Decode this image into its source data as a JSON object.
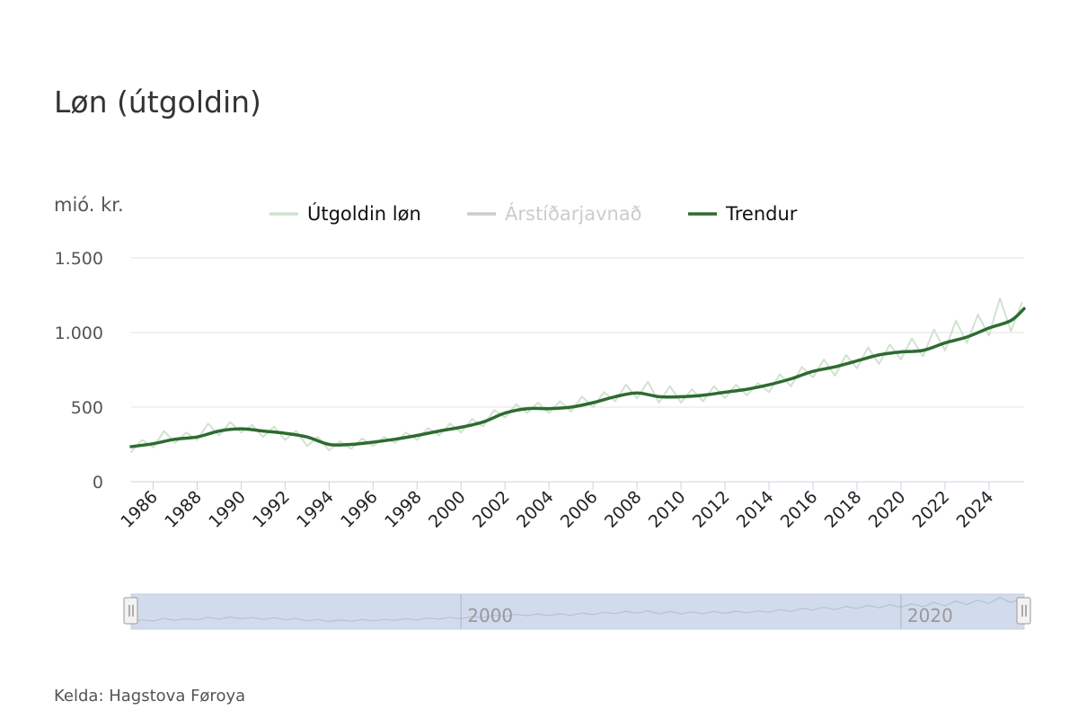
{
  "chart_data": {
    "type": "line",
    "title": "Løn (útgoldin)",
    "ylabel": "mió. kr.",
    "source": "Kelda: Hagstova Føroya",
    "ylim": [
      0,
      1500
    ],
    "xlim": [
      1985.0,
      2025.6
    ],
    "yticks": [
      {
        "value": 0,
        "label": "0"
      },
      {
        "value": 500,
        "label": "500"
      },
      {
        "value": 1000,
        "label": "1.000"
      },
      {
        "value": 1500,
        "label": "1.500"
      }
    ],
    "xticks": [
      "1986",
      "1988",
      "1990",
      "1992",
      "1994",
      "1996",
      "1998",
      "2000",
      "2002",
      "2004",
      "2006",
      "2008",
      "2010",
      "2012",
      "2014",
      "2016",
      "2018",
      "2020",
      "2022",
      "2024"
    ],
    "grid": true,
    "legend": {
      "placement": "top-center",
      "entries": [
        {
          "name": "Útgoldin løn",
          "color": "#cfe3cf",
          "visible": true
        },
        {
          "name": "Árstíðarjavnað",
          "color": "#cccccc",
          "visible": false
        },
        {
          "name": "Trendur",
          "color": "#2e6b30",
          "visible": true
        }
      ]
    },
    "series": [
      {
        "name": "Trendur",
        "color": "#2e6b30",
        "x": [
          1985,
          1986,
          1987,
          1988,
          1989,
          1990,
          1991,
          1992,
          1993,
          1994,
          1995,
          1996,
          1997,
          1998,
          1999,
          2000,
          2001,
          2002,
          2003,
          2004,
          2005,
          2006,
          2007,
          2008,
          2009,
          2010,
          2011,
          2012,
          2013,
          2014,
          2015,
          2016,
          2017,
          2018,
          2019,
          2020,
          2021,
          2022,
          2023,
          2024,
          2025,
          2025.6
        ],
        "values": [
          235,
          255,
          285,
          300,
          340,
          355,
          340,
          325,
          300,
          250,
          250,
          265,
          285,
          310,
          340,
          365,
          400,
          460,
          490,
          490,
          500,
          530,
          570,
          595,
          570,
          570,
          580,
          600,
          620,
          650,
          690,
          740,
          770,
          810,
          850,
          870,
          880,
          930,
          970,
          1030,
          1080,
          1160
        ]
      },
      {
        "name": "Útgoldin løn",
        "color": "#cfe3cf",
        "x": [
          1985,
          1985.5,
          1986,
          1986.5,
          1987,
          1987.5,
          1988,
          1988.5,
          1989,
          1989.5,
          1990,
          1990.5,
          1991,
          1991.5,
          1992,
          1992.5,
          1993,
          1993.5,
          1994,
          1994.5,
          1995,
          1995.5,
          1996,
          1996.5,
          1997,
          1997.5,
          1998,
          1998.5,
          1999,
          1999.5,
          2000,
          2000.5,
          2001,
          2001.5,
          2002,
          2002.5,
          2003,
          2003.5,
          2004,
          2004.5,
          2005,
          2005.5,
          2006,
          2006.5,
          2007,
          2007.5,
          2008,
          2008.5,
          2009,
          2009.5,
          2010,
          2010.5,
          2011,
          2011.5,
          2012,
          2012.5,
          2013,
          2013.5,
          2014,
          2014.5,
          2015,
          2015.5,
          2016,
          2016.5,
          2017,
          2017.5,
          2018,
          2018.5,
          2019,
          2019.5,
          2020,
          2020.5,
          2021,
          2021.5,
          2022,
          2022.5,
          2023,
          2023.5,
          2024,
          2024.5,
          2025,
          2025.5
        ],
        "values": [
          200,
          280,
          230,
          340,
          260,
          330,
          280,
          390,
          310,
          400,
          330,
          380,
          300,
          370,
          280,
          340,
          240,
          300,
          210,
          270,
          220,
          290,
          240,
          300,
          260,
          330,
          280,
          360,
          310,
          390,
          330,
          420,
          370,
          480,
          430,
          520,
          460,
          530,
          460,
          540,
          470,
          570,
          500,
          600,
          540,
          650,
          560,
          670,
          530,
          640,
          530,
          620,
          540,
          640,
          560,
          650,
          580,
          660,
          600,
          720,
          640,
          770,
          700,
          820,
          710,
          850,
          760,
          900,
          790,
          920,
          820,
          960,
          840,
          1020,
          880,
          1080,
          930,
          1120,
          980,
          1230,
          1010,
          1200
        ]
      }
    ],
    "navigator": {
      "labels": [
        "2000",
        "2020"
      ]
    }
  }
}
